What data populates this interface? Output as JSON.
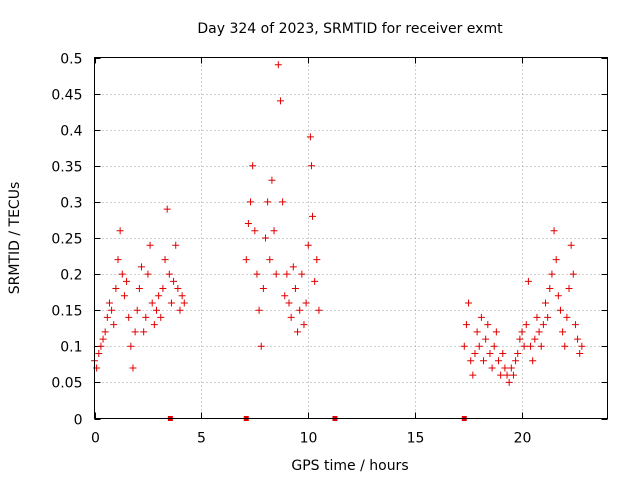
{
  "chart_data": {
    "type": "scatter",
    "title": "Day 324 of 2023, SRMTID for receiver exmt",
    "xlabel": "GPS time / hours",
    "ylabel": "SRMTID / TECUs",
    "xlim": [
      0,
      24
    ],
    "ylim": [
      0,
      0.5
    ],
    "x_ticks": [
      0,
      5,
      10,
      15,
      20
    ],
    "x_tick_labels": [
      "0",
      "5",
      "10",
      "15",
      "20"
    ],
    "y_ticks": [
      0,
      0.05,
      0.1,
      0.15,
      0.2,
      0.25,
      0.3,
      0.35,
      0.4,
      0.45,
      0.5
    ],
    "y_tick_labels": [
      "0",
      "0.05",
      "0.1",
      "0.15",
      "0.2",
      "0.25",
      "0.3",
      "0.35",
      "0.4",
      "0.45",
      "0.5"
    ],
    "grid": true,
    "marker": "plus",
    "color": "#e00000",
    "zero_marks_x": [
      3.55,
      7.1,
      11.25,
      17.3
    ],
    "series": [
      {
        "name": "SRMTID",
        "points": [
          [
            0.0,
            0.08
          ],
          [
            0.1,
            0.07
          ],
          [
            0.2,
            0.09
          ],
          [
            0.3,
            0.1
          ],
          [
            0.4,
            0.11
          ],
          [
            0.5,
            0.12
          ],
          [
            0.6,
            0.14
          ],
          [
            0.7,
            0.16
          ],
          [
            0.8,
            0.15
          ],
          [
            0.9,
            0.13
          ],
          [
            1.0,
            0.18
          ],
          [
            1.1,
            0.22
          ],
          [
            1.2,
            0.26
          ],
          [
            1.3,
            0.2
          ],
          [
            1.4,
            0.17
          ],
          [
            1.5,
            0.19
          ],
          [
            1.6,
            0.14
          ],
          [
            1.7,
            0.1
          ],
          [
            1.8,
            0.07
          ],
          [
            1.9,
            0.12
          ],
          [
            2.0,
            0.15
          ],
          [
            2.1,
            0.18
          ],
          [
            2.2,
            0.21
          ],
          [
            2.3,
            0.12
          ],
          [
            2.4,
            0.14
          ],
          [
            2.5,
            0.2
          ],
          [
            2.6,
            0.24
          ],
          [
            2.7,
            0.16
          ],
          [
            2.8,
            0.13
          ],
          [
            2.9,
            0.15
          ],
          [
            3.0,
            0.17
          ],
          [
            3.1,
            0.14
          ],
          [
            3.2,
            0.18
          ],
          [
            3.3,
            0.22
          ],
          [
            3.4,
            0.29
          ],
          [
            3.5,
            0.2
          ],
          [
            3.6,
            0.16
          ],
          [
            3.7,
            0.19
          ],
          [
            3.8,
            0.24
          ],
          [
            3.9,
            0.18
          ],
          [
            4.0,
            0.15
          ],
          [
            4.1,
            0.17
          ],
          [
            4.2,
            0.16
          ],
          [
            7.1,
            0.22
          ],
          [
            7.2,
            0.27
          ],
          [
            7.3,
            0.3
          ],
          [
            7.4,
            0.35
          ],
          [
            7.5,
            0.26
          ],
          [
            7.6,
            0.2
          ],
          [
            7.7,
            0.15
          ],
          [
            7.8,
            0.1
          ],
          [
            7.9,
            0.18
          ],
          [
            8.0,
            0.25
          ],
          [
            8.1,
            0.3
          ],
          [
            8.2,
            0.22
          ],
          [
            8.3,
            0.33
          ],
          [
            8.4,
            0.26
          ],
          [
            8.5,
            0.2
          ],
          [
            8.6,
            0.49
          ],
          [
            8.7,
            0.44
          ],
          [
            8.8,
            0.3
          ],
          [
            8.9,
            0.17
          ],
          [
            9.0,
            0.2
          ],
          [
            9.1,
            0.16
          ],
          [
            9.2,
            0.14
          ],
          [
            9.3,
            0.21
          ],
          [
            9.4,
            0.18
          ],
          [
            9.5,
            0.12
          ],
          [
            9.6,
            0.15
          ],
          [
            9.7,
            0.2
          ],
          [
            9.8,
            0.13
          ],
          [
            9.9,
            0.16
          ],
          [
            10.0,
            0.24
          ],
          [
            10.1,
            0.39
          ],
          [
            10.15,
            0.35
          ],
          [
            10.2,
            0.28
          ],
          [
            10.3,
            0.19
          ],
          [
            10.4,
            0.22
          ],
          [
            10.5,
            0.15
          ],
          [
            17.3,
            0.1
          ],
          [
            17.4,
            0.13
          ],
          [
            17.5,
            0.16
          ],
          [
            17.6,
            0.08
          ],
          [
            17.7,
            0.06
          ],
          [
            17.8,
            0.09
          ],
          [
            17.9,
            0.12
          ],
          [
            18.0,
            0.1
          ],
          [
            18.1,
            0.14
          ],
          [
            18.2,
            0.08
          ],
          [
            18.3,
            0.11
          ],
          [
            18.4,
            0.13
          ],
          [
            18.5,
            0.09
          ],
          [
            18.6,
            0.07
          ],
          [
            18.7,
            0.1
          ],
          [
            18.8,
            0.12
          ],
          [
            18.9,
            0.08
          ],
          [
            19.0,
            0.06
          ],
          [
            19.1,
            0.09
          ],
          [
            19.2,
            0.07
          ],
          [
            19.3,
            0.06
          ],
          [
            19.4,
            0.05
          ],
          [
            19.5,
            0.07
          ],
          [
            19.6,
            0.06
          ],
          [
            19.7,
            0.08
          ],
          [
            19.8,
            0.09
          ],
          [
            19.9,
            0.11
          ],
          [
            20.0,
            0.12
          ],
          [
            20.1,
            0.1
          ],
          [
            20.2,
            0.13
          ],
          [
            20.3,
            0.19
          ],
          [
            20.4,
            0.1
          ],
          [
            20.5,
            0.08
          ],
          [
            20.6,
            0.11
          ],
          [
            20.7,
            0.14
          ],
          [
            20.8,
            0.12
          ],
          [
            20.9,
            0.1
          ],
          [
            21.0,
            0.13
          ],
          [
            21.1,
            0.16
          ],
          [
            21.2,
            0.14
          ],
          [
            21.3,
            0.18
          ],
          [
            21.4,
            0.2
          ],
          [
            21.5,
            0.26
          ],
          [
            21.6,
            0.22
          ],
          [
            21.7,
            0.17
          ],
          [
            21.8,
            0.15
          ],
          [
            21.9,
            0.12
          ],
          [
            22.0,
            0.1
          ],
          [
            22.1,
            0.14
          ],
          [
            22.2,
            0.18
          ],
          [
            22.3,
            0.24
          ],
          [
            22.4,
            0.2
          ],
          [
            22.5,
            0.13
          ],
          [
            22.6,
            0.11
          ],
          [
            22.7,
            0.09
          ],
          [
            22.8,
            0.1
          ]
        ]
      }
    ]
  }
}
